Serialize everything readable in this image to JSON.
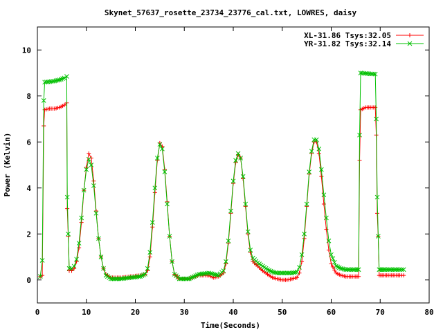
{
  "chart_data": {
    "type": "line",
    "title": "Skynet_57637_rosette_23734_23776_cal.txt, LOWRES, daisy",
    "xlabel": "Time(Seconds)",
    "ylabel": "Power (Kelvin)",
    "xlim": [
      0,
      80
    ],
    "ylim": [
      -1,
      11
    ],
    "xticks": [
      0,
      10,
      20,
      30,
      40,
      50,
      60,
      70,
      80
    ],
    "yticks": [
      0,
      2,
      4,
      6,
      8,
      10
    ],
    "grid": false,
    "legend_position": "top-right",
    "series": [
      {
        "name": "XL-31.86 Tsys:32.05",
        "color": "#ff0000",
        "marker": "plus",
        "points": [
          [
            0.6,
            0.15
          ],
          [
            1.0,
            0.2
          ],
          [
            1.3,
            6.7
          ],
          [
            1.5,
            7.4
          ],
          [
            2.5,
            7.45
          ],
          [
            3.5,
            7.45
          ],
          [
            4.5,
            7.5
          ],
          [
            5.5,
            7.6
          ],
          [
            6.0,
            7.7
          ],
          [
            6.1,
            3.1
          ],
          [
            6.3,
            1.9
          ],
          [
            6.5,
            0.4
          ],
          [
            7.0,
            0.4
          ],
          [
            7.5,
            0.5
          ],
          [
            8.0,
            0.8
          ],
          [
            8.5,
            1.4
          ],
          [
            9.0,
            2.5
          ],
          [
            9.5,
            3.9
          ],
          [
            10.0,
            4.9
          ],
          [
            10.5,
            5.5
          ],
          [
            11.0,
            5.3
          ],
          [
            11.5,
            4.3
          ],
          [
            12.0,
            3.0
          ],
          [
            12.5,
            1.8
          ],
          [
            13.0,
            1.0
          ],
          [
            13.5,
            0.5
          ],
          [
            14.0,
            0.25
          ],
          [
            15.0,
            0.1
          ],
          [
            17.0,
            0.1
          ],
          [
            19.0,
            0.15
          ],
          [
            21.0,
            0.2
          ],
          [
            22.0,
            0.25
          ],
          [
            22.5,
            0.4
          ],
          [
            23.0,
            1.0
          ],
          [
            23.5,
            2.3
          ],
          [
            24.0,
            3.8
          ],
          [
            24.5,
            5.2
          ],
          [
            25.0,
            5.95
          ],
          [
            25.5,
            5.8
          ],
          [
            26.0,
            4.8
          ],
          [
            26.5,
            3.4
          ],
          [
            27.0,
            1.9
          ],
          [
            27.5,
            0.8
          ],
          [
            28.0,
            0.25
          ],
          [
            29.0,
            0.05
          ],
          [
            31.0,
            0.05
          ],
          [
            33.0,
            0.2
          ],
          [
            35.0,
            0.2
          ],
          [
            36.0,
            0.1
          ],
          [
            37.0,
            0.15
          ],
          [
            38.0,
            0.3
          ],
          [
            38.5,
            0.7
          ],
          [
            39.0,
            1.6
          ],
          [
            39.5,
            2.9
          ],
          [
            40.0,
            4.2
          ],
          [
            40.5,
            5.1
          ],
          [
            41.0,
            5.45
          ],
          [
            41.5,
            5.3
          ],
          [
            42.0,
            4.4
          ],
          [
            42.5,
            3.2
          ],
          [
            43.0,
            2.0
          ],
          [
            43.5,
            1.2
          ],
          [
            44.0,
            0.8
          ],
          [
            45.0,
            0.6
          ],
          [
            46.0,
            0.4
          ],
          [
            47.0,
            0.25
          ],
          [
            48.0,
            0.1
          ],
          [
            49.0,
            0.05
          ],
          [
            50.0,
            0.0
          ],
          [
            51.0,
            0.0
          ],
          [
            52.0,
            0.05
          ],
          [
            53.0,
            0.1
          ],
          [
            53.5,
            0.3
          ],
          [
            54.0,
            0.8
          ],
          [
            54.5,
            1.8
          ],
          [
            55.0,
            3.2
          ],
          [
            55.5,
            4.6
          ],
          [
            56.0,
            5.5
          ],
          [
            56.5,
            6.0
          ],
          [
            57.0,
            6.0
          ],
          [
            57.5,
            5.5
          ],
          [
            58.0,
            4.5
          ],
          [
            58.5,
            3.3
          ],
          [
            59.0,
            2.2
          ],
          [
            59.5,
            1.3
          ],
          [
            60.0,
            0.7
          ],
          [
            61.0,
            0.3
          ],
          [
            62.0,
            0.2
          ],
          [
            63.0,
            0.15
          ],
          [
            64.0,
            0.15
          ],
          [
            65.0,
            0.15
          ],
          [
            65.6,
            0.15
          ],
          [
            65.8,
            5.2
          ],
          [
            66.0,
            7.4
          ],
          [
            67.0,
            7.5
          ],
          [
            68.0,
            7.5
          ],
          [
            69.0,
            7.5
          ],
          [
            69.2,
            6.3
          ],
          [
            69.4,
            2.9
          ],
          [
            69.6,
            1.9
          ],
          [
            69.8,
            0.2
          ],
          [
            71.0,
            0.2
          ],
          [
            72.0,
            0.2
          ],
          [
            73.0,
            0.2
          ],
          [
            74.0,
            0.2
          ],
          [
            74.8,
            0.2
          ]
        ]
      },
      {
        "name": "YR-31.82 Tsys:32.14",
        "color": "#00c000",
        "marker": "x",
        "points": [
          [
            0.6,
            0.15
          ],
          [
            1.0,
            0.85
          ],
          [
            1.3,
            7.8
          ],
          [
            1.5,
            8.6
          ],
          [
            2.5,
            8.62
          ],
          [
            3.5,
            8.65
          ],
          [
            4.5,
            8.7
          ],
          [
            5.5,
            8.78
          ],
          [
            6.0,
            8.85
          ],
          [
            6.1,
            3.6
          ],
          [
            6.3,
            2.0
          ],
          [
            6.5,
            0.5
          ],
          [
            7.0,
            0.5
          ],
          [
            7.5,
            0.6
          ],
          [
            8.0,
            0.9
          ],
          [
            8.5,
            1.6
          ],
          [
            9.0,
            2.7
          ],
          [
            9.5,
            3.9
          ],
          [
            10.0,
            4.8
          ],
          [
            10.5,
            5.25
          ],
          [
            11.0,
            5.0
          ],
          [
            11.5,
            4.1
          ],
          [
            12.0,
            2.9
          ],
          [
            12.5,
            1.8
          ],
          [
            13.0,
            1.0
          ],
          [
            13.5,
            0.5
          ],
          [
            14.0,
            0.2
          ],
          [
            15.0,
            0.05
          ],
          [
            17.0,
            0.05
          ],
          [
            19.0,
            0.1
          ],
          [
            21.0,
            0.15
          ],
          [
            22.0,
            0.25
          ],
          [
            22.5,
            0.5
          ],
          [
            23.0,
            1.2
          ],
          [
            23.5,
            2.5
          ],
          [
            24.0,
            4.0
          ],
          [
            24.5,
            5.3
          ],
          [
            25.0,
            5.9
          ],
          [
            25.5,
            5.7
          ],
          [
            26.0,
            4.7
          ],
          [
            26.5,
            3.3
          ],
          [
            27.0,
            1.9
          ],
          [
            27.5,
            0.8
          ],
          [
            28.0,
            0.25
          ],
          [
            29.0,
            0.05
          ],
          [
            31.0,
            0.05
          ],
          [
            33.0,
            0.25
          ],
          [
            35.0,
            0.3
          ],
          [
            36.0,
            0.25
          ],
          [
            37.0,
            0.2
          ],
          [
            38.0,
            0.4
          ],
          [
            38.5,
            0.8
          ],
          [
            39.0,
            1.7
          ],
          [
            39.5,
            3.0
          ],
          [
            40.0,
            4.3
          ],
          [
            40.5,
            5.2
          ],
          [
            41.0,
            5.5
          ],
          [
            41.5,
            5.3
          ],
          [
            42.0,
            4.5
          ],
          [
            42.5,
            3.3
          ],
          [
            43.0,
            2.1
          ],
          [
            43.5,
            1.3
          ],
          [
            44.0,
            0.95
          ],
          [
            45.0,
            0.75
          ],
          [
            46.0,
            0.6
          ],
          [
            47.0,
            0.45
          ],
          [
            48.0,
            0.35
          ],
          [
            49.0,
            0.3
          ],
          [
            50.0,
            0.3
          ],
          [
            51.0,
            0.3
          ],
          [
            52.0,
            0.3
          ],
          [
            53.0,
            0.35
          ],
          [
            53.5,
            0.55
          ],
          [
            54.0,
            1.1
          ],
          [
            54.5,
            2.0
          ],
          [
            55.0,
            3.3
          ],
          [
            55.5,
            4.7
          ],
          [
            56.0,
            5.6
          ],
          [
            56.5,
            6.1
          ],
          [
            57.0,
            6.1
          ],
          [
            57.5,
            5.7
          ],
          [
            58.0,
            4.8
          ],
          [
            58.5,
            3.7
          ],
          [
            59.0,
            2.7
          ],
          [
            59.5,
            1.7
          ],
          [
            60.0,
            1.1
          ],
          [
            61.0,
            0.6
          ],
          [
            62.0,
            0.5
          ],
          [
            63.0,
            0.45
          ],
          [
            64.0,
            0.45
          ],
          [
            65.0,
            0.45
          ],
          [
            65.6,
            0.45
          ],
          [
            65.8,
            6.3
          ],
          [
            66.0,
            9.0
          ],
          [
            67.0,
            8.98
          ],
          [
            68.0,
            8.96
          ],
          [
            69.0,
            8.95
          ],
          [
            69.2,
            7.0
          ],
          [
            69.4,
            3.6
          ],
          [
            69.6,
            1.9
          ],
          [
            69.8,
            0.45
          ],
          [
            71.0,
            0.45
          ],
          [
            72.0,
            0.45
          ],
          [
            73.0,
            0.45
          ],
          [
            74.0,
            0.45
          ],
          [
            74.8,
            0.45
          ]
        ]
      }
    ]
  }
}
